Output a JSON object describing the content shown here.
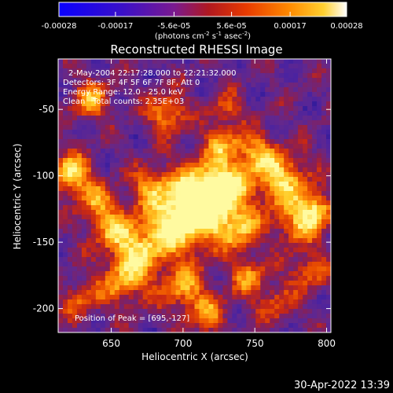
{
  "chart_data": {
    "type": "heatmap",
    "title": "Reconstructed RHESSI Image",
    "xlabel": "Heliocentric X (arcsec)",
    "ylabel": "Heliocentric Y (arcsec)",
    "xlim": [
      613,
      803
    ],
    "ylim": [
      -218,
      -12
    ],
    "x_ticks": [
      "650",
      "700",
      "750",
      "800"
    ],
    "y_ticks": [
      "-50",
      "-100",
      "-150",
      "-200"
    ],
    "colorbar": {
      "ticks": [
        "-0.00028",
        "-0.00017",
        "-5.6e-05",
        "5.6e-05",
        "0.00017",
        "0.00028"
      ],
      "label": "(photons cm",
      "label_exp1": "-2",
      "label_mid": " s",
      "label_exp2": "-1",
      "label_tail": " asec",
      "label_exp3": "-2",
      "label_end": ")",
      "range": [
        -0.00028,
        0.00028
      ]
    },
    "annotations": {
      "time_range": "2-May-2004 22:17:28.000 to 22:21:32.000",
      "detectors": "Detectors: 3F 4F 5F 6F 7F 8F, Att 0",
      "energy": "Energy Range: 12.0 - 25.0 keV",
      "clean": "Clean",
      "counts": "Total counts: 2.35E+03",
      "peak": "Position of Peak = [695,-127]"
    },
    "peak": [
      695,
      -127
    ]
  },
  "footer": {
    "date": "30-Apr-2022 13:39"
  },
  "colors": {
    "background": "#000000",
    "text": "#ffffff",
    "map_low": "#1a0a8c",
    "map_mid": "#6a2a8a",
    "map_high": "#ffd040"
  }
}
